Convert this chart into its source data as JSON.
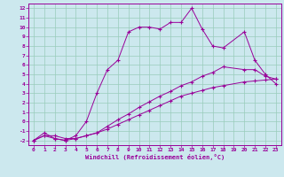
{
  "bg_color": "#cce8ee",
  "line_color": "#990099",
  "grid_color": "#99ccbb",
  "xlabel": "Windchill (Refroidissement éolien,°C)",
  "xlim": [
    -0.5,
    23.5
  ],
  "ylim": [
    -2.5,
    12.5
  ],
  "yticks": [
    -2,
    -1,
    0,
    1,
    2,
    3,
    4,
    5,
    6,
    7,
    8,
    9,
    10,
    11,
    12
  ],
  "xticks": [
    0,
    1,
    2,
    3,
    4,
    5,
    6,
    7,
    8,
    9,
    10,
    11,
    12,
    13,
    14,
    15,
    16,
    17,
    18,
    19,
    20,
    21,
    22,
    23
  ],
  "curve1_x": [
    0,
    1,
    2,
    3,
    4,
    5,
    6,
    7,
    8,
    9,
    10,
    11,
    12,
    13,
    14,
    15,
    16,
    17,
    18,
    20,
    21,
    22,
    23
  ],
  "curve1_y": [
    -2,
    -1.5,
    -1.8,
    -2,
    -1.8,
    -1.5,
    -1.2,
    -0.8,
    -0.3,
    0.2,
    0.7,
    1.2,
    1.7,
    2.2,
    2.7,
    3.0,
    3.3,
    3.6,
    3.8,
    4.2,
    4.3,
    4.4,
    4.5
  ],
  "curve2_x": [
    0,
    1,
    2,
    3,
    4,
    5,
    6,
    7,
    8,
    9,
    10,
    11,
    12,
    13,
    14,
    15,
    16,
    17,
    18,
    20,
    21,
    22,
    23
  ],
  "curve2_y": [
    -2,
    -1.5,
    -1.5,
    -1.8,
    -1.8,
    -1.5,
    -1.2,
    -0.5,
    0.2,
    0.8,
    1.5,
    2.1,
    2.7,
    3.2,
    3.8,
    4.2,
    4.8,
    5.2,
    5.8,
    5.5,
    5.5,
    4.8,
    4.5
  ],
  "curve3_x": [
    0,
    1,
    2,
    3,
    4,
    5,
    6,
    7,
    8,
    9,
    10,
    11,
    12,
    13,
    14,
    15,
    16,
    17,
    18,
    20,
    21,
    22,
    23
  ],
  "curve3_y": [
    -2,
    -1.2,
    -1.8,
    -2,
    -1.5,
    0,
    3,
    5.5,
    6.5,
    9.5,
    10,
    10,
    9.8,
    10.5,
    10.5,
    12,
    9.8,
    8,
    7.8,
    9.5,
    6.5,
    5,
    4
  ]
}
